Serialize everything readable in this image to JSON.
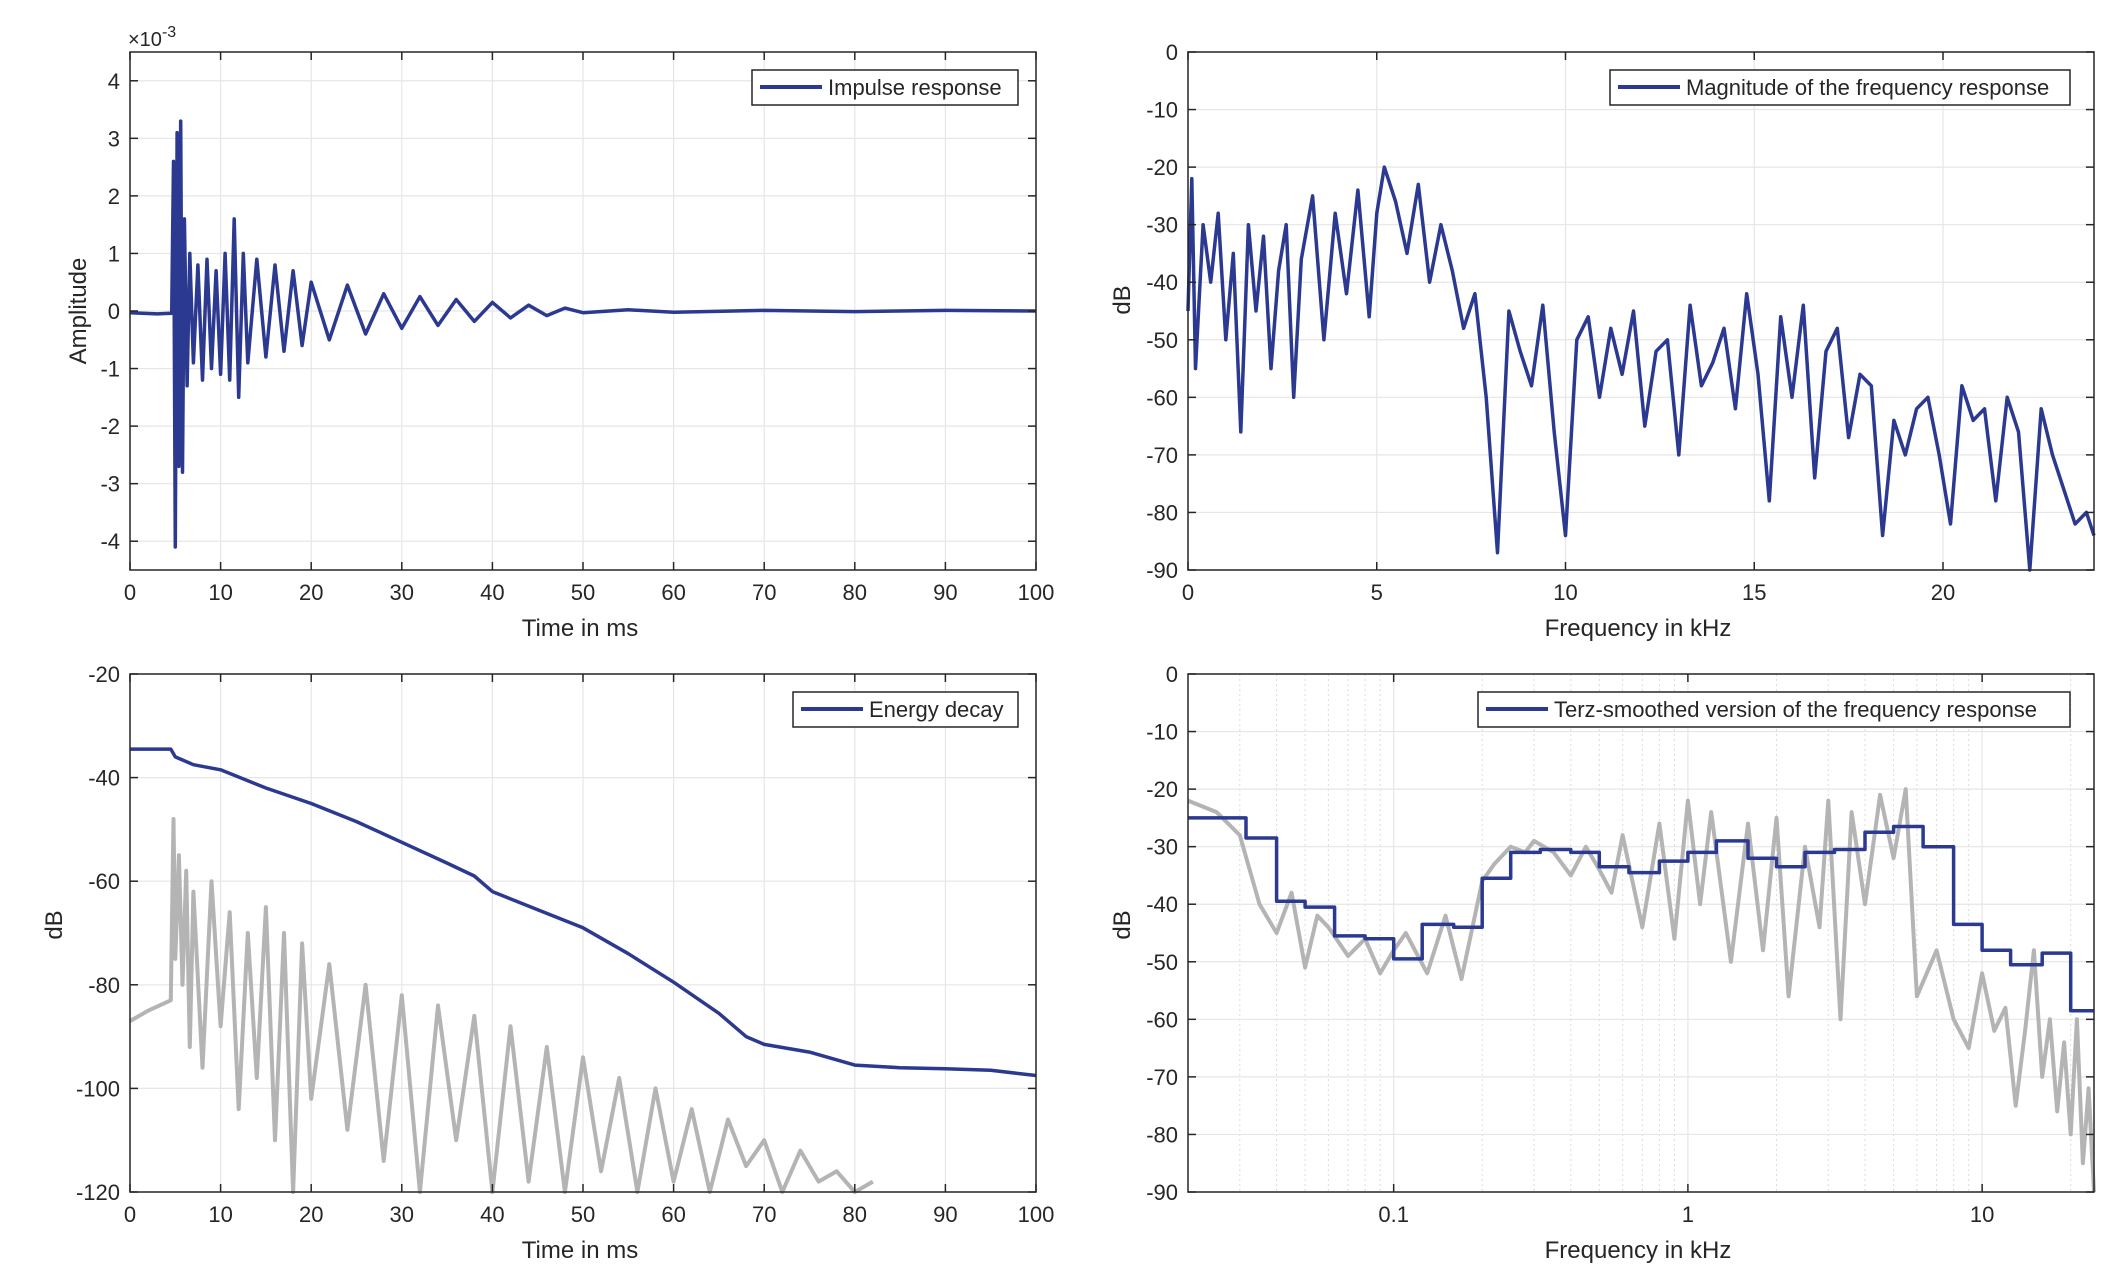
{
  "colors": {
    "primary_series": "#2b3990",
    "secondary_series": "#b4b4b4",
    "grid": "#e6e6e6",
    "axes": "#262626"
  },
  "chart_data": [
    {
      "id": "impulse",
      "type": "line",
      "xlabel": "Time in ms",
      "ylabel": "Amplitude",
      "exponent_label": "×10",
      "exponent_power": "-3",
      "xlim": [
        0,
        100
      ],
      "ylim": [
        -4.5,
        4.5
      ],
      "xticks": [
        "0",
        "10",
        "20",
        "30",
        "40",
        "50",
        "60",
        "70",
        "80",
        "90",
        "100"
      ],
      "yticks": [
        "4",
        "3",
        "2",
        "1",
        "0",
        "-1",
        "-2",
        "-3",
        "-4"
      ],
      "grid": true,
      "legend_placement": "top-right",
      "series": [
        {
          "name": "Impulse response",
          "x": [
            0,
            3,
            4.6,
            4.8,
            5.0,
            5.2,
            5.4,
            5.6,
            5.8,
            6.0,
            6.3,
            6.6,
            7.0,
            7.5,
            8,
            8.5,
            9,
            9.5,
            10,
            10.5,
            11,
            11.5,
            12,
            12.5,
            13,
            14,
            15,
            16,
            17,
            18,
            19,
            20,
            22,
            24,
            26,
            28,
            30,
            32,
            34,
            36,
            38,
            40,
            42,
            44,
            46,
            48,
            50,
            55,
            60,
            70,
            80,
            90,
            100
          ],
          "y": [
            -0.03,
            -0.05,
            -0.04,
            2.6,
            -4.1,
            3.1,
            -2.7,
            3.3,
            -2.8,
            1.6,
            -1.3,
            1.0,
            -0.9,
            0.8,
            -1.2,
            0.9,
            -1.0,
            0.7,
            -1.1,
            1.0,
            -1.2,
            1.6,
            -1.5,
            1.0,
            -0.9,
            0.9,
            -0.8,
            0.8,
            -0.7,
            0.7,
            -0.6,
            0.5,
            -0.5,
            0.45,
            -0.4,
            0.3,
            -0.3,
            0.25,
            -0.25,
            0.2,
            -0.18,
            0.15,
            -0.12,
            0.1,
            -0.08,
            0.05,
            -0.03,
            0.02,
            -0.02,
            0.01,
            -0.01,
            0.01,
            0.0
          ]
        }
      ]
    },
    {
      "id": "magnitude",
      "type": "line",
      "xlabel": "Frequency in kHz",
      "ylabel": "dB",
      "xlim": [
        0,
        24
      ],
      "ylim": [
        -90,
        0
      ],
      "xticks": [
        "0",
        "5",
        "10",
        "15",
        "20"
      ],
      "xtick_values": [
        0,
        5,
        10,
        15,
        20
      ],
      "yticks": [
        "0",
        "-10",
        "-20",
        "-30",
        "-40",
        "-50",
        "-60",
        "-70",
        "-80",
        "-90"
      ],
      "grid": true,
      "legend_placement": "top-right",
      "series": [
        {
          "name": "Magnitude of the frequency response",
          "x": [
            0,
            0.1,
            0.2,
            0.4,
            0.6,
            0.8,
            1.0,
            1.2,
            1.4,
            1.6,
            1.8,
            2.0,
            2.2,
            2.4,
            2.6,
            2.8,
            3.0,
            3.3,
            3.6,
            3.9,
            4.2,
            4.5,
            4.8,
            5.0,
            5.2,
            5.5,
            5.8,
            6.1,
            6.4,
            6.7,
            7.0,
            7.3,
            7.6,
            7.9,
            8.2,
            8.5,
            8.8,
            9.1,
            9.4,
            9.7,
            10.0,
            10.3,
            10.6,
            10.9,
            11.2,
            11.5,
            11.8,
            12.1,
            12.4,
            12.7,
            13.0,
            13.3,
            13.6,
            13.9,
            14.2,
            14.5,
            14.8,
            15.1,
            15.4,
            15.7,
            16.0,
            16.3,
            16.6,
            16.9,
            17.2,
            17.5,
            17.8,
            18.1,
            18.4,
            18.7,
            19.0,
            19.3,
            19.6,
            19.9,
            20.2,
            20.5,
            20.8,
            21.1,
            21.4,
            21.7,
            22.0,
            22.3,
            22.6,
            22.9,
            23.2,
            23.5,
            23.8,
            24.0
          ],
          "y": [
            -45,
            -22,
            -55,
            -30,
            -40,
            -28,
            -50,
            -35,
            -66,
            -30,
            -45,
            -32,
            -55,
            -38,
            -30,
            -60,
            -36,
            -25,
            -50,
            -28,
            -42,
            -24,
            -46,
            -28,
            -20,
            -26,
            -35,
            -23,
            -40,
            -30,
            -38,
            -48,
            -42,
            -60,
            -87,
            -45,
            -52,
            -58,
            -44,
            -66,
            -84,
            -50,
            -46,
            -60,
            -48,
            -56,
            -45,
            -65,
            -52,
            -50,
            -70,
            -44,
            -58,
            -54,
            -48,
            -62,
            -42,
            -56,
            -78,
            -46,
            -60,
            -44,
            -74,
            -52,
            -48,
            -67,
            -56,
            -58,
            -84,
            -64,
            -70,
            -62,
            -60,
            -70,
            -82,
            -58,
            -64,
            -62,
            -78,
            -60,
            -66,
            -90,
            -62,
            -70,
            -76,
            -82,
            -80,
            -84
          ]
        }
      ]
    },
    {
      "id": "energy",
      "type": "line",
      "xlabel": "Time in ms",
      "ylabel": "dB",
      "xlim": [
        0,
        100
      ],
      "ylim": [
        -120,
        -20
      ],
      "xticks": [
        "0",
        "10",
        "20",
        "30",
        "40",
        "50",
        "60",
        "70",
        "80",
        "90",
        "100"
      ],
      "yticks": [
        "-20",
        "-40",
        "-60",
        "-80",
        "-100",
        "-120"
      ],
      "ytick_values": [
        -20,
        -40,
        -60,
        -80,
        -100,
        -120
      ],
      "grid": true,
      "legend_placement": "top-right",
      "series": [
        {
          "name": "Energy decay",
          "x": [
            0,
            4.5,
            5,
            7,
            10,
            15,
            20,
            25,
            30,
            35,
            38,
            40,
            45,
            50,
            55,
            60,
            65,
            67,
            68,
            70,
            75,
            80,
            85,
            90,
            95,
            100
          ],
          "y": [
            -34.5,
            -34.5,
            -36,
            -37.5,
            -38.5,
            -42,
            -45,
            -48.5,
            -52.5,
            -56.5,
            -59,
            -62,
            -65.5,
            -69,
            -74,
            -79.5,
            -85.5,
            -88.5,
            -90,
            -91.5,
            -93,
            -95.5,
            -96,
            -96.2,
            -96.5,
            -97.5
          ]
        },
        {
          "x": [
            0,
            2,
            4.5,
            4.8,
            5.0,
            5.4,
            5.8,
            6.2,
            6.6,
            7,
            8,
            9,
            10,
            11,
            12,
            13,
            14,
            15,
            16,
            17,
            18,
            19,
            20,
            22,
            24,
            26,
            28,
            30,
            32,
            34,
            36,
            38,
            40,
            42,
            44,
            46,
            48,
            50,
            52,
            54,
            56,
            58,
            60,
            62,
            64,
            66,
            68,
            70,
            72,
            74,
            76,
            78,
            80,
            82
          ],
          "y": [
            -87,
            -85,
            -83,
            -48,
            -75,
            -55,
            -80,
            -58,
            -92,
            -62,
            -96,
            -60,
            -88,
            -66,
            -104,
            -70,
            -98,
            -65,
            -110,
            -70,
            -120,
            -72,
            -102,
            -76,
            -108,
            -80,
            -114,
            -82,
            -120,
            -84,
            -110,
            -86,
            -120,
            -88,
            -118,
            -92,
            -120,
            -94,
            -116,
            -98,
            -120,
            -100,
            -118,
            -104,
            -120,
            -106,
            -115,
            -110,
            -120,
            -112,
            -118,
            -116,
            -120,
            -118
          ]
        }
      ]
    },
    {
      "id": "terz",
      "type": "line",
      "xlabel": "Frequency in kHz",
      "ylabel": "dB",
      "x_scale": "log",
      "xlim": [
        0.02,
        24
      ],
      "ylim": [
        -90,
        0
      ],
      "xticks": [
        "0.1",
        "1",
        "10"
      ],
      "xtick_values": [
        0.1,
        1,
        10
      ],
      "yticks": [
        "0",
        "-10",
        "-20",
        "-30",
        "-40",
        "-50",
        "-60",
        "-70",
        "-80",
        "-90"
      ],
      "grid": true,
      "legend_placement": "top-right",
      "series": [
        {
          "name": "Terz-smoothed version of the frequency response",
          "x": [
            0.02,
            0.0315,
            0.0315,
            0.04,
            0.04,
            0.05,
            0.05,
            0.063,
            0.063,
            0.08,
            0.08,
            0.1,
            0.1,
            0.125,
            0.125,
            0.16,
            0.16,
            0.2,
            0.2,
            0.25,
            0.25,
            0.315,
            0.315,
            0.4,
            0.4,
            0.5,
            0.5,
            0.63,
            0.63,
            0.8,
            0.8,
            1.0,
            1.0,
            1.25,
            1.25,
            1.6,
            1.6,
            2.0,
            2.0,
            2.5,
            2.5,
            3.15,
            3.15,
            4.0,
            4.0,
            5.0,
            5.0,
            6.3,
            6.3,
            8.0,
            8.0,
            10,
            10,
            12.5,
            12.5,
            16,
            16,
            20,
            20,
            24
          ],
          "y": [
            -25,
            -25,
            -28.5,
            -28.5,
            -39.5,
            -39.5,
            -40.5,
            -40.5,
            -45.5,
            -45.5,
            -46,
            -46,
            -49.5,
            -49.5,
            -43.5,
            -43.5,
            -44,
            -44,
            -35.5,
            -35.5,
            -31,
            -31,
            -30.5,
            -30.5,
            -31,
            -31,
            -33.5,
            -33.5,
            -34.5,
            -34.5,
            -32.5,
            -32.5,
            -31,
            -31,
            -29,
            -29,
            -32,
            -32,
            -33.5,
            -33.5,
            -31,
            -31,
            -30.5,
            -30.5,
            -27.5,
            -27.5,
            -26.5,
            -26.5,
            -30,
            -30,
            -43.5,
            -43.5,
            -48,
            -48,
            -50.5,
            -50.5,
            -48.5,
            -48.5,
            -58.5,
            -58.5
          ]
        },
        {
          "x": [
            0.02,
            0.025,
            0.03,
            0.035,
            0.04,
            0.045,
            0.05,
            0.055,
            0.06,
            0.07,
            0.08,
            0.09,
            0.1,
            0.11,
            0.13,
            0.15,
            0.17,
            0.2,
            0.22,
            0.25,
            0.28,
            0.3,
            0.35,
            0.4,
            0.45,
            0.5,
            0.55,
            0.6,
            0.7,
            0.8,
            0.9,
            1.0,
            1.1,
            1.2,
            1.4,
            1.6,
            1.8,
            2.0,
            2.2,
            2.5,
            2.8,
            3.0,
            3.3,
            3.6,
            4.0,
            4.5,
            5.0,
            5.5,
            6.0,
            7.0,
            8.0,
            9.0,
            10,
            11,
            12,
            13,
            14,
            15,
            16,
            17,
            18,
            19,
            20,
            21,
            22,
            23,
            24
          ],
          "y": [
            -22,
            -24,
            -28,
            -40,
            -45,
            -38,
            -51,
            -42,
            -44,
            -49,
            -46,
            -52,
            -48,
            -45,
            -52,
            -42,
            -53,
            -36,
            -33,
            -30,
            -31,
            -29,
            -31,
            -35,
            -30,
            -34,
            -38,
            -28,
            -44,
            -26,
            -46,
            -22,
            -40,
            -24,
            -50,
            -26,
            -48,
            -25,
            -56,
            -30,
            -44,
            -22,
            -60,
            -24,
            -40,
            -21,
            -32,
            -20,
            -56,
            -48,
            -60,
            -65,
            -52,
            -62,
            -58,
            -75,
            -62,
            -48,
            -70,
            -60,
            -76,
            -64,
            -80,
            -60,
            -85,
            -72,
            -90
          ]
        }
      ]
    }
  ]
}
